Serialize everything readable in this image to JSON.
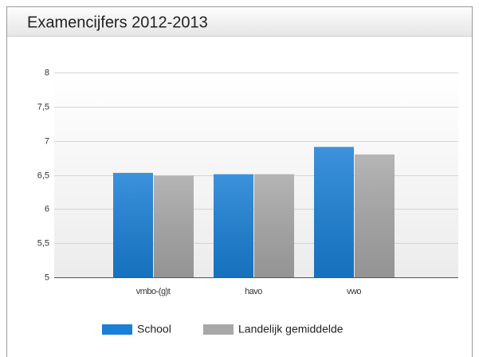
{
  "chart_data": {
    "type": "bar",
    "title": "Examencijfers  2012-2013",
    "categories": [
      "vmbo-(g)t",
      "havo",
      "vwo"
    ],
    "series": [
      {
        "name": "School",
        "color": "#1a80d6",
        "values": [
          6.53,
          6.51,
          6.91
        ]
      },
      {
        "name": "Landelijk gemiddelde",
        "color": "#a8a8a8",
        "values": [
          6.49,
          6.51,
          6.8
        ]
      }
    ],
    "ylim": [
      5,
      8
    ],
    "yticks": [
      5,
      {
        "value": 5.5,
        "label": "5,5"
      },
      6,
      {
        "value": 6.5,
        "label": "6,5"
      },
      7,
      {
        "value": 7.5,
        "label": "7,5"
      },
      8
    ],
    "grid": true
  }
}
